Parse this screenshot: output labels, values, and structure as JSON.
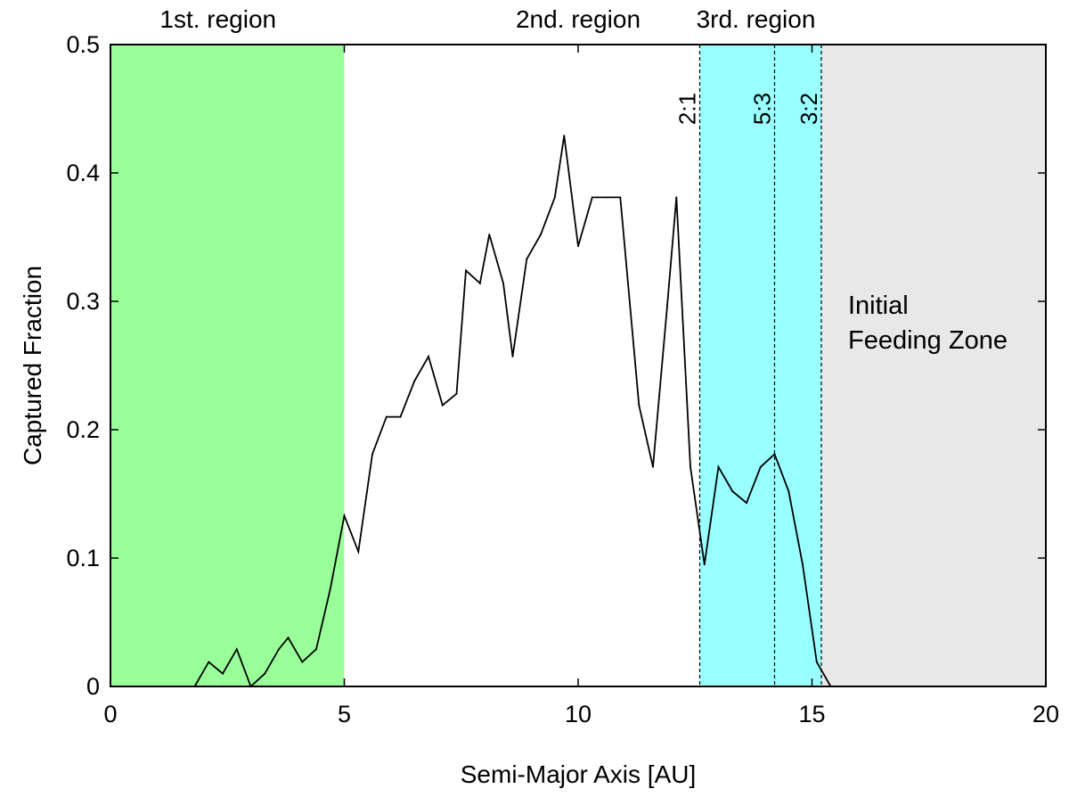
{
  "chart_data": {
    "type": "line",
    "title": "",
    "xlabel": "Semi-Major Axis [AU]",
    "ylabel": "Captured Fraction",
    "xlim": [
      0,
      20
    ],
    "ylim": [
      0,
      0.5
    ],
    "xticks": [
      0,
      5,
      10,
      15,
      20
    ],
    "yticks": [
      0,
      0.1,
      0.2,
      0.3,
      0.4,
      0.5
    ],
    "xtick_labels": [
      "0",
      "5",
      "10",
      "15",
      "20"
    ],
    "ytick_labels": [
      "0",
      "0.1",
      "0.2",
      "0.3",
      "0.4",
      "0.5"
    ],
    "grid": false,
    "regions": [
      {
        "label": "1st. region",
        "x_start": 0,
        "x_end": 5.0,
        "color": "#99FF99"
      },
      {
        "label": "2nd. region",
        "x_start": 5.0,
        "x_end": 12.6,
        "color": "#FFFFFF"
      },
      {
        "label": "3rd. region",
        "x_start": 12.6,
        "x_end": 15.2,
        "color": "#99FFFF"
      }
    ],
    "shaded_zone": {
      "label_lines": [
        "Initial",
        "Feeding Zone"
      ],
      "x_start": 15.2,
      "x_end": 20,
      "color": "#E8E8E8"
    },
    "resonances": [
      {
        "label": "2:1",
        "x": 12.6
      },
      {
        "label": "5:3",
        "x": 14.2
      },
      {
        "label": "3:2",
        "x": 15.2
      }
    ],
    "series": [
      {
        "color": "#000000",
        "points": [
          [
            1.8,
            0.0
          ],
          [
            2.1,
            0.019
          ],
          [
            2.4,
            0.01
          ],
          [
            2.7,
            0.029
          ],
          [
            3.0,
            0.0
          ],
          [
            3.3,
            0.01
          ],
          [
            3.6,
            0.029
          ],
          [
            3.8,
            0.038
          ],
          [
            4.1,
            0.019
          ],
          [
            4.4,
            0.029
          ],
          [
            4.7,
            0.076
          ],
          [
            5.0,
            0.133
          ],
          [
            5.3,
            0.105
          ],
          [
            5.6,
            0.181
          ],
          [
            5.9,
            0.21
          ],
          [
            6.2,
            0.21
          ],
          [
            6.5,
            0.238
          ],
          [
            6.8,
            0.257
          ],
          [
            7.1,
            0.219
          ],
          [
            7.4,
            0.228
          ],
          [
            7.6,
            0.324
          ],
          [
            7.9,
            0.314
          ],
          [
            8.1,
            0.352
          ],
          [
            8.4,
            0.314
          ],
          [
            8.6,
            0.257
          ],
          [
            8.9,
            0.333
          ],
          [
            9.2,
            0.352
          ],
          [
            9.5,
            0.381
          ],
          [
            9.7,
            0.429
          ],
          [
            10.0,
            0.343
          ],
          [
            10.3,
            0.381
          ],
          [
            10.6,
            0.381
          ],
          [
            10.9,
            0.381
          ],
          [
            11.3,
            0.219
          ],
          [
            11.6,
            0.171
          ],
          [
            11.9,
            0.295
          ],
          [
            12.1,
            0.381
          ],
          [
            12.4,
            0.171
          ],
          [
            12.7,
            0.095
          ],
          [
            13.0,
            0.171
          ],
          [
            13.3,
            0.152
          ],
          [
            13.6,
            0.143
          ],
          [
            13.9,
            0.171
          ],
          [
            14.2,
            0.181
          ],
          [
            14.5,
            0.152
          ],
          [
            14.8,
            0.095
          ],
          [
            15.1,
            0.019
          ],
          [
            15.4,
            0.0
          ]
        ]
      }
    ]
  }
}
